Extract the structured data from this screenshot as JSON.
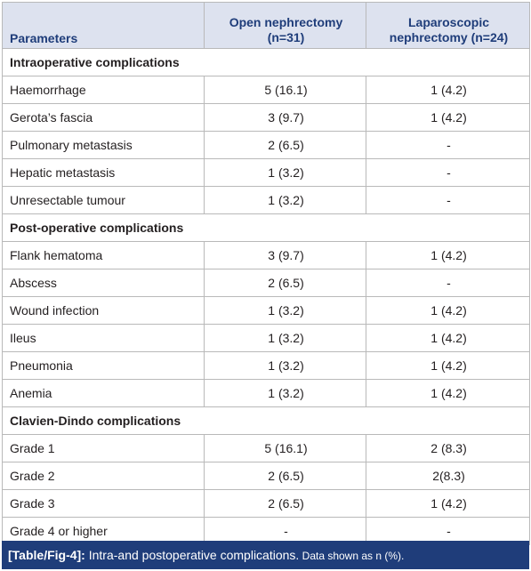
{
  "table": {
    "headers": {
      "parameters": "Parameters",
      "open_line1": "Open nephrectomy",
      "open_line2": "(n=31)",
      "lap_line1": "Laparoscopic",
      "lap_line2": "nephrectomy (n=24)"
    },
    "sections": [
      {
        "title": "Intraoperative complications",
        "rows": [
          {
            "param": "Haemorrhage",
            "open": "5 (16.1)",
            "lap": "1 (4.2)"
          },
          {
            "param": "Gerota’s fascia",
            "open": "3 (9.7)",
            "lap": "1 (4.2)"
          },
          {
            "param": "Pulmonary metastasis",
            "open": "2 (6.5)",
            "lap": "-"
          },
          {
            "param": "Hepatic metastasis",
            "open": "1 (3.2)",
            "lap": "-"
          },
          {
            "param": "Unresectable tumour",
            "open": "1 (3.2)",
            "lap": "-"
          }
        ]
      },
      {
        "title": "Post-operative complications",
        "rows": [
          {
            "param": "Flank hematoma",
            "open": "3 (9.7)",
            "lap": "1 (4.2)"
          },
          {
            "param": "Abscess",
            "open": "2 (6.5)",
            "lap": "-"
          },
          {
            "param": "Wound infection",
            "open": "1 (3.2)",
            "lap": "1 (4.2)"
          },
          {
            "param": "Ileus",
            "open": "1 (3.2)",
            "lap": "1 (4.2)"
          },
          {
            "param": "Pneumonia",
            "open": "1 (3.2)",
            "lap": "1 (4.2)"
          },
          {
            "param": "Anemia",
            "open": "1 (3.2)",
            "lap": "1 (4.2)"
          }
        ]
      },
      {
        "title": "Clavien-Dindo complications",
        "rows": [
          {
            "param": "Grade 1",
            "open": "5 (16.1)",
            "lap": "2 (8.3)"
          },
          {
            "param": "Grade 2",
            "open": "2 (6.5)",
            "lap": "2(8.3)"
          },
          {
            "param": "Grade 3",
            "open": "2 (6.5)",
            "lap": "1 (4.2)"
          },
          {
            "param": "Grade 4 or higher",
            "open": "-",
            "lap": "-"
          }
        ]
      }
    ]
  },
  "caption": {
    "label": "[Table/Fig-4]:",
    "text": " Intra-and postoperative complications.",
    "note": " Data shown as n (%)."
  },
  "colors": {
    "header_bg": "#dde2ef",
    "header_text": "#1f3d7a",
    "caption_bg": "#1f3d7a",
    "border": "#b9b9b9"
  }
}
